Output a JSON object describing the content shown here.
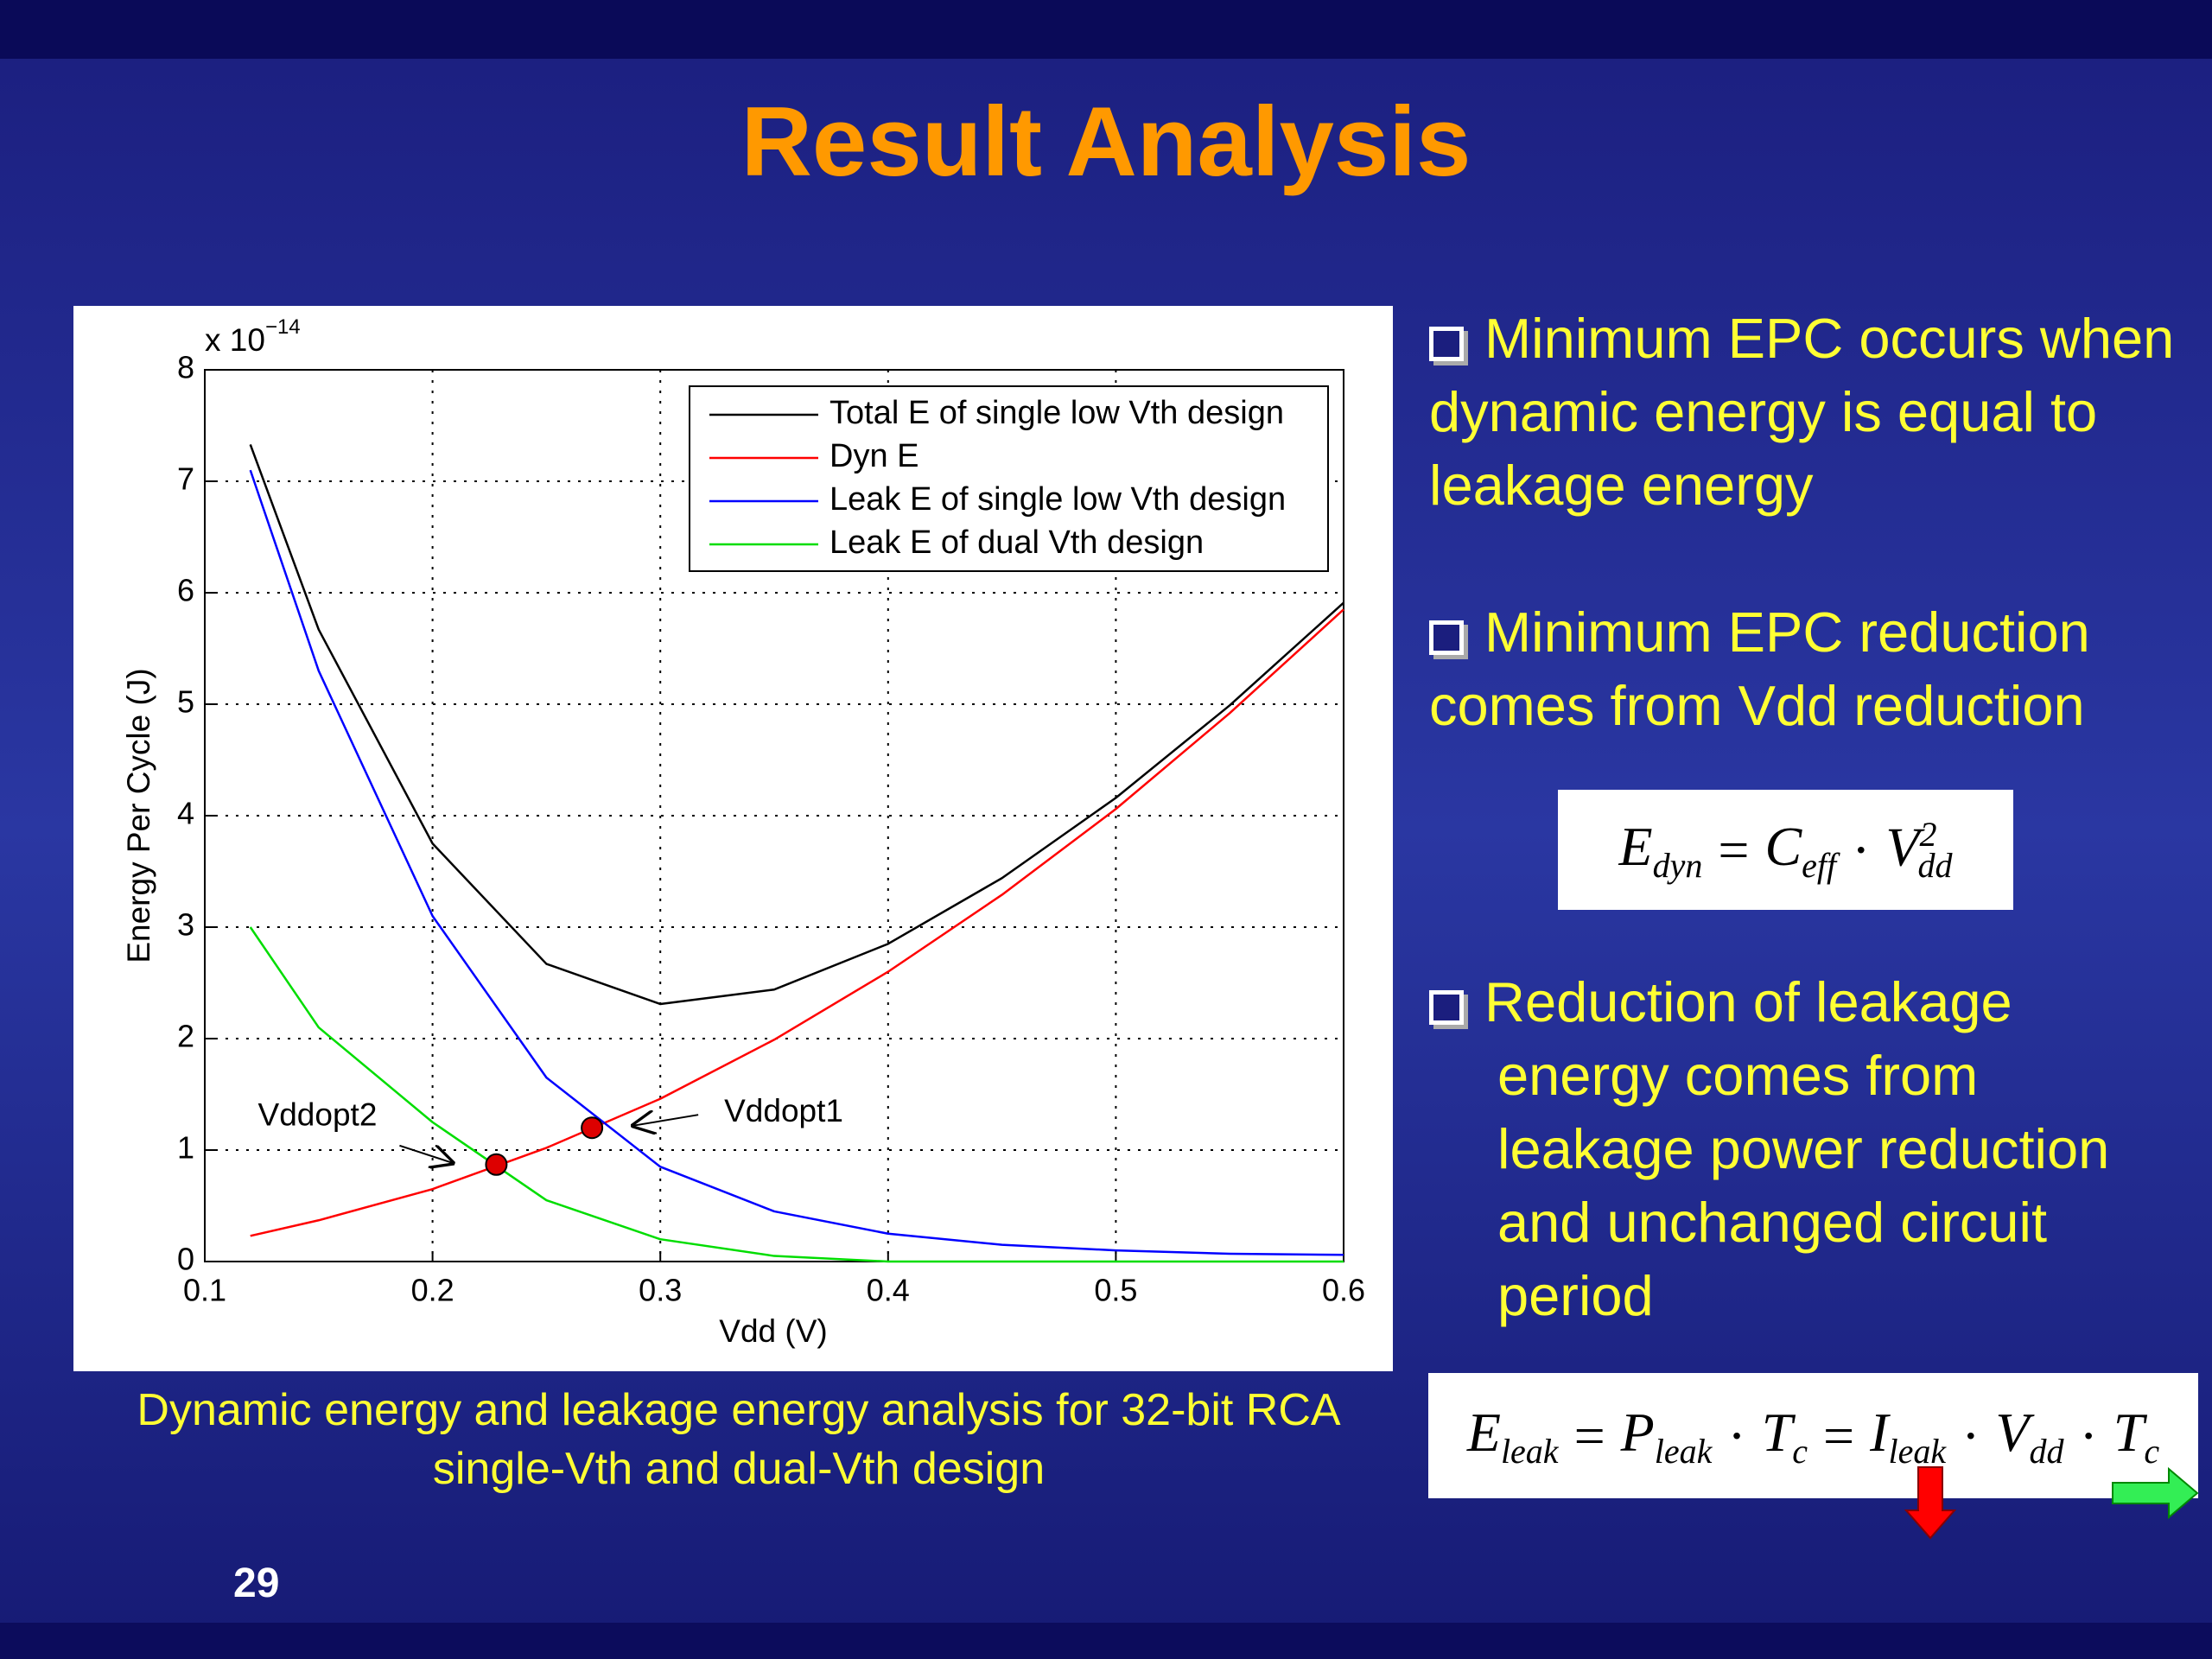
{
  "title": "Result Analysis",
  "bullets": [
    "Minimum EPC occurs when dynamic energy is equal to leakage energy",
    "Minimum EPC reduction comes from Vdd reduction",
    "Reduction of leakage energy comes from leakage power reduction and unchanged circuit period"
  ],
  "formulas": [
    [
      {
        "text": "E",
        "sub": "dyn"
      },
      {
        "text": "="
      },
      {
        "text": "C",
        "sub": "eff"
      },
      {
        "text": "·"
      },
      {
        "text": "V",
        "sub": "dd",
        "sup": "2"
      }
    ],
    [
      {
        "text": "E",
        "sub": "leak"
      },
      {
        "text": "="
      },
      {
        "text": "P",
        "sub": "leak"
      },
      {
        "text": "·"
      },
      {
        "text": "T",
        "sub": "c"
      },
      {
        "text": "="
      },
      {
        "text": "I",
        "sub": "leak"
      },
      {
        "text": "·"
      },
      {
        "text": "V",
        "sub": "dd"
      },
      {
        "text": "·"
      },
      {
        "text": "T",
        "sub": "c"
      }
    ]
  ],
  "caption": "Dynamic energy and leakage energy analysis for 32-bit RCA single-Vth and dual-Vth design",
  "page_number": "29",
  "chart_data": {
    "type": "line",
    "x_label": "Vdd (V)",
    "y_label": "Energy Per Cycle (J)",
    "y_multiplier": {
      "base": "x 10",
      "exp": "−14"
    },
    "x": [
      0.12,
      0.15,
      0.2,
      0.25,
      0.3,
      0.35,
      0.4,
      0.45,
      0.5,
      0.55,
      0.6
    ],
    "series": [
      {
        "name": "Total E of single low Vth design",
        "color": "#000000",
        "values": [
          7.33,
          5.67,
          3.75,
          2.67,
          2.31,
          2.44,
          2.85,
          3.44,
          4.16,
          4.99,
          5.91
        ]
      },
      {
        "name": "Dyn E",
        "color": "#ff0000",
        "values": [
          0.23,
          0.37,
          0.65,
          1.02,
          1.46,
          1.99,
          2.6,
          3.29,
          4.06,
          4.92,
          5.85
        ]
      },
      {
        "name": "Leak E of single low Vth design",
        "color": "#0000ff",
        "values": [
          7.1,
          5.3,
          3.1,
          1.65,
          0.85,
          0.45,
          0.25,
          0.15,
          0.1,
          0.07,
          0.06
        ]
      },
      {
        "name": "Leak E of dual Vth design",
        "color": "#00dd00",
        "values": [
          3.0,
          2.1,
          1.25,
          0.55,
          0.2,
          0.05,
          0,
          0,
          0,
          0,
          0
        ]
      }
    ],
    "annotations": [
      {
        "text": "Vddopt1",
        "x": 0.27,
        "y": 1.2
      },
      {
        "text": "Vddopt2",
        "x": 0.228,
        "y": 0.87
      }
    ],
    "xlim": [
      0.1,
      0.6
    ],
    "xticks": [
      0.1,
      0.2,
      0.3,
      0.4,
      0.5,
      0.6
    ],
    "ylim": [
      0,
      8
    ],
    "yticks": [
      0,
      1,
      2,
      3,
      4,
      5,
      6,
      7,
      8
    ],
    "grid": true,
    "legend": "upper right"
  }
}
